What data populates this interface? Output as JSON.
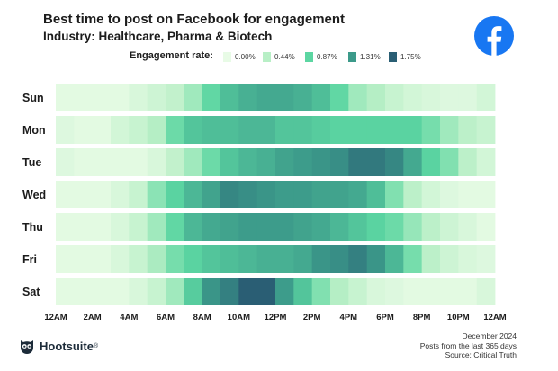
{
  "title": "Best time to post on Facebook for engagement",
  "subtitle": "Industry: Healthcare, Pharma & Biotech",
  "brand_icon": "facebook-logo-icon",
  "legend": {
    "label": "Engagement rate:",
    "items": [
      {
        "value": "0.00%",
        "color": "#e8fbe6"
      },
      {
        "value": "0.44%",
        "color": "#b8efc6"
      },
      {
        "value": "0.87%",
        "color": "#5cd6a2"
      },
      {
        "value": "1.31%",
        "color": "#3c9a8a"
      },
      {
        "value": "1.75%",
        "color": "#2a5e74"
      }
    ]
  },
  "chart_data": {
    "type": "heatmap",
    "title": "Best time to post on Facebook for engagement",
    "subtitle": "Industry: Healthcare, Pharma & Biotech",
    "xlabel": "",
    "ylabel": "",
    "x_ticks": [
      "12AM",
      "2AM",
      "4AM",
      "6AM",
      "8AM",
      "10AM",
      "12PM",
      "2PM",
      "4PM",
      "6PM",
      "8PM",
      "10PM",
      "12AM"
    ],
    "rows": [
      "Sun",
      "Mon",
      "Tue",
      "Wed",
      "Thu",
      "Fri",
      "Sat"
    ],
    "units": "engagement rate (%)",
    "range": [
      0.0,
      1.75
    ],
    "values": [
      [
        0.05,
        0.05,
        0.05,
        0.05,
        0.15,
        0.25,
        0.35,
        0.55,
        0.85,
        1.05,
        1.15,
        1.2,
        1.2,
        1.15,
        1.05,
        0.85,
        0.55,
        0.45,
        0.3,
        0.2,
        0.15,
        0.1,
        0.1,
        0.2
      ],
      [
        0.1,
        0.05,
        0.05,
        0.2,
        0.3,
        0.45,
        0.8,
        1.0,
        1.05,
        1.05,
        1.1,
        1.1,
        1.0,
        1.0,
        0.95,
        0.9,
        0.9,
        0.9,
        0.9,
        0.9,
        0.75,
        0.55,
        0.4,
        0.3
      ],
      [
        0.1,
        0.05,
        0.05,
        0.05,
        0.05,
        0.15,
        0.35,
        0.55,
        0.8,
        1.0,
        1.1,
        1.15,
        1.25,
        1.3,
        1.35,
        1.4,
        1.55,
        1.55,
        1.45,
        1.2,
        0.9,
        0.7,
        0.4,
        0.2
      ],
      [
        0.05,
        0.05,
        0.05,
        0.15,
        0.3,
        0.65,
        0.9,
        1.1,
        1.25,
        1.45,
        1.4,
        1.35,
        1.3,
        1.3,
        1.25,
        1.25,
        1.2,
        1.05,
        0.7,
        0.4,
        0.2,
        0.1,
        0.05,
        0.05
      ],
      [
        0.05,
        0.05,
        0.05,
        0.15,
        0.3,
        0.55,
        0.85,
        1.1,
        1.2,
        1.25,
        1.3,
        1.3,
        1.3,
        1.25,
        1.2,
        1.1,
        1.0,
        0.9,
        0.8,
        0.6,
        0.4,
        0.25,
        0.15,
        0.05
      ],
      [
        0.05,
        0.05,
        0.05,
        0.15,
        0.3,
        0.5,
        0.75,
        0.9,
        1.0,
        1.05,
        1.1,
        1.15,
        1.15,
        1.2,
        1.35,
        1.4,
        1.5,
        1.35,
        1.1,
        0.75,
        0.4,
        0.25,
        0.15,
        0.1
      ],
      [
        0.05,
        0.05,
        0.05,
        0.05,
        0.15,
        0.3,
        0.55,
        0.95,
        1.35,
        1.5,
        1.75,
        1.75,
        1.3,
        1.0,
        0.7,
        0.45,
        0.3,
        0.15,
        0.1,
        0.05,
        0.05,
        0.05,
        0.05,
        0.15
      ]
    ]
  },
  "footer": {
    "brand": "Hootsuite",
    "brand_mark": "®",
    "brand_icon": "hootsuite-owl-icon",
    "date": "December 2024",
    "note": "Posts from the last 365 days",
    "source": "Source: Critical Truth"
  }
}
